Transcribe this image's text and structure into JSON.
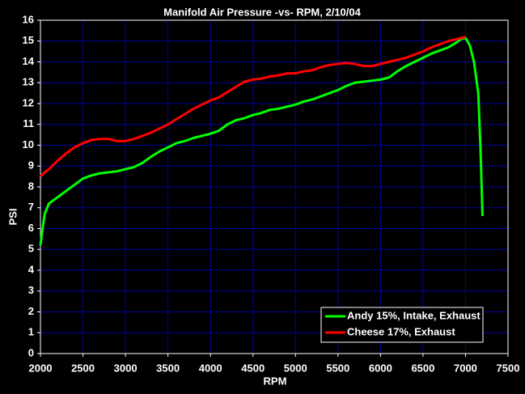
{
  "chart_data": {
    "type": "line",
    "title": "Manifold Air Pressure -vs- RPM, 2/10/04",
    "x_label": "RPM",
    "y_label": "PSI",
    "x": [
      2000,
      2025,
      2050,
      2100,
      2200,
      2300,
      2400,
      2500,
      2600,
      2700,
      2800,
      2900,
      3000,
      3100,
      3200,
      3300,
      3400,
      3500,
      3600,
      3700,
      3800,
      3900,
      4000,
      4100,
      4200,
      4300,
      4400,
      4500,
      4600,
      4700,
      4800,
      4900,
      5000,
      5100,
      5200,
      5300,
      5400,
      5500,
      5600,
      5700,
      5800,
      5900,
      6000,
      6100,
      6200,
      6300,
      6400,
      6500,
      6600,
      6700,
      6800,
      6900,
      6950,
      7000,
      7050,
      7100,
      7150,
      7175,
      7200
    ],
    "series": [
      {
        "name": "Andy 15%, Intake, Exhaust",
        "color": "#00ff00",
        "values": [
          5.2,
          6.0,
          6.7,
          7.2,
          7.5,
          7.8,
          8.1,
          8.4,
          8.55,
          8.65,
          8.7,
          8.75,
          8.85,
          8.95,
          9.15,
          9.45,
          9.7,
          9.9,
          10.1,
          10.2,
          10.35,
          10.45,
          10.55,
          10.7,
          11.0,
          11.2,
          11.3,
          11.45,
          11.55,
          11.7,
          11.75,
          11.85,
          11.95,
          12.1,
          12.2,
          12.35,
          12.5,
          12.65,
          12.85,
          13.0,
          13.05,
          13.1,
          13.15,
          13.25,
          13.55,
          13.8,
          14.0,
          14.2,
          14.4,
          14.55,
          14.7,
          14.95,
          15.1,
          15.15,
          14.8,
          14.0,
          12.5,
          10.0,
          6.6
        ]
      },
      {
        "name": "Cheese 17%, Exhaust",
        "color": "#ff0000",
        "values": [
          8.5,
          8.6,
          8.7,
          8.85,
          9.25,
          9.6,
          9.9,
          10.1,
          10.25,
          10.3,
          10.3,
          10.2,
          10.2,
          10.3,
          10.45,
          10.6,
          10.8,
          11.0,
          11.25,
          11.5,
          11.75,
          11.95,
          12.15,
          12.3,
          12.55,
          12.8,
          13.05,
          13.15,
          13.2,
          13.3,
          13.35,
          13.45,
          13.45,
          13.55,
          13.6,
          13.75,
          13.85,
          13.9,
          13.95,
          13.9,
          13.8,
          13.8,
          13.9,
          14.0,
          14.1,
          14.2,
          14.35,
          14.5,
          14.7,
          14.85,
          15.0,
          15.1,
          15.15,
          15.2,
          null,
          null,
          null,
          null,
          null
        ]
      }
    ],
    "xlim": [
      2000,
      7500
    ],
    "xticks": [
      2000,
      2500,
      3000,
      3500,
      4000,
      4500,
      5000,
      5500,
      6000,
      6500,
      7000,
      7500
    ],
    "ylim": [
      0,
      16
    ],
    "yticks": [
      0,
      1,
      2,
      3,
      4,
      5,
      6,
      7,
      8,
      9,
      10,
      11,
      12,
      13,
      14,
      15,
      16
    ],
    "grid": true,
    "grid_color": "#0000a0",
    "legend": "lower-right"
  }
}
